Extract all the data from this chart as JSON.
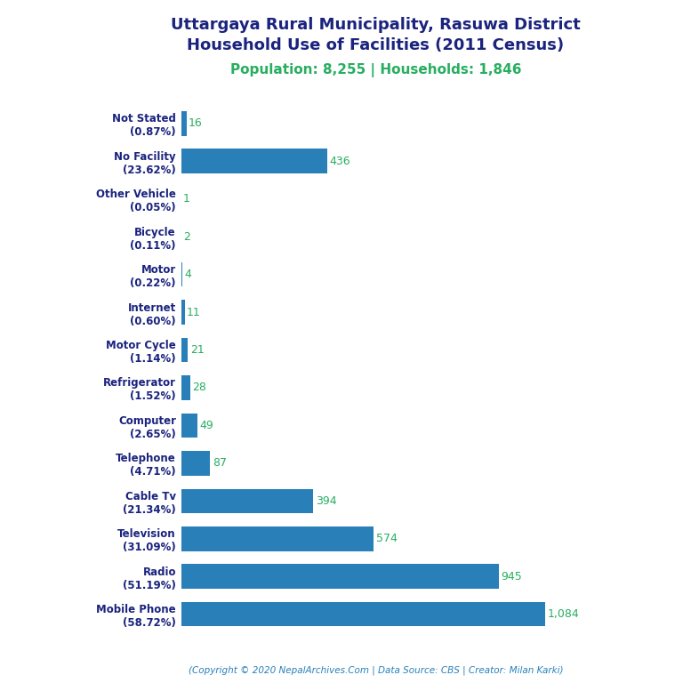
{
  "title_line1": "Uttargaya Rural Municipality, Rasuwa District",
  "title_line2": "Household Use of Facilities (2011 Census)",
  "subtitle": "Population: 8,255 | Households: 1,846",
  "categories": [
    "Not Stated\n(0.87%)",
    "No Facility\n(23.62%)",
    "Other Vehicle\n(0.05%)",
    "Bicycle\n(0.11%)",
    "Motor\n(0.22%)",
    "Internet\n(0.60%)",
    "Motor Cycle\n(1.14%)",
    "Refrigerator\n(1.52%)",
    "Computer\n(2.65%)",
    "Telephone\n(4.71%)",
    "Cable Tv\n(21.34%)",
    "Television\n(31.09%)",
    "Radio\n(51.19%)",
    "Mobile Phone\n(58.72%)"
  ],
  "values": [
    16,
    436,
    1,
    2,
    4,
    11,
    21,
    28,
    49,
    87,
    394,
    574,
    945,
    1084
  ],
  "bar_color": "#2980B9",
  "value_color": "#27AE60",
  "title_color": "#1a237e",
  "subtitle_color": "#27AE60",
  "copyright_color": "#2980B9",
  "copyright_text": "(Copyright © 2020 NepalArchives.Com | Data Source: CBS | Creator: Milan Karki)",
  "background_color": "#ffffff",
  "xlim": [
    0,
    1250
  ]
}
